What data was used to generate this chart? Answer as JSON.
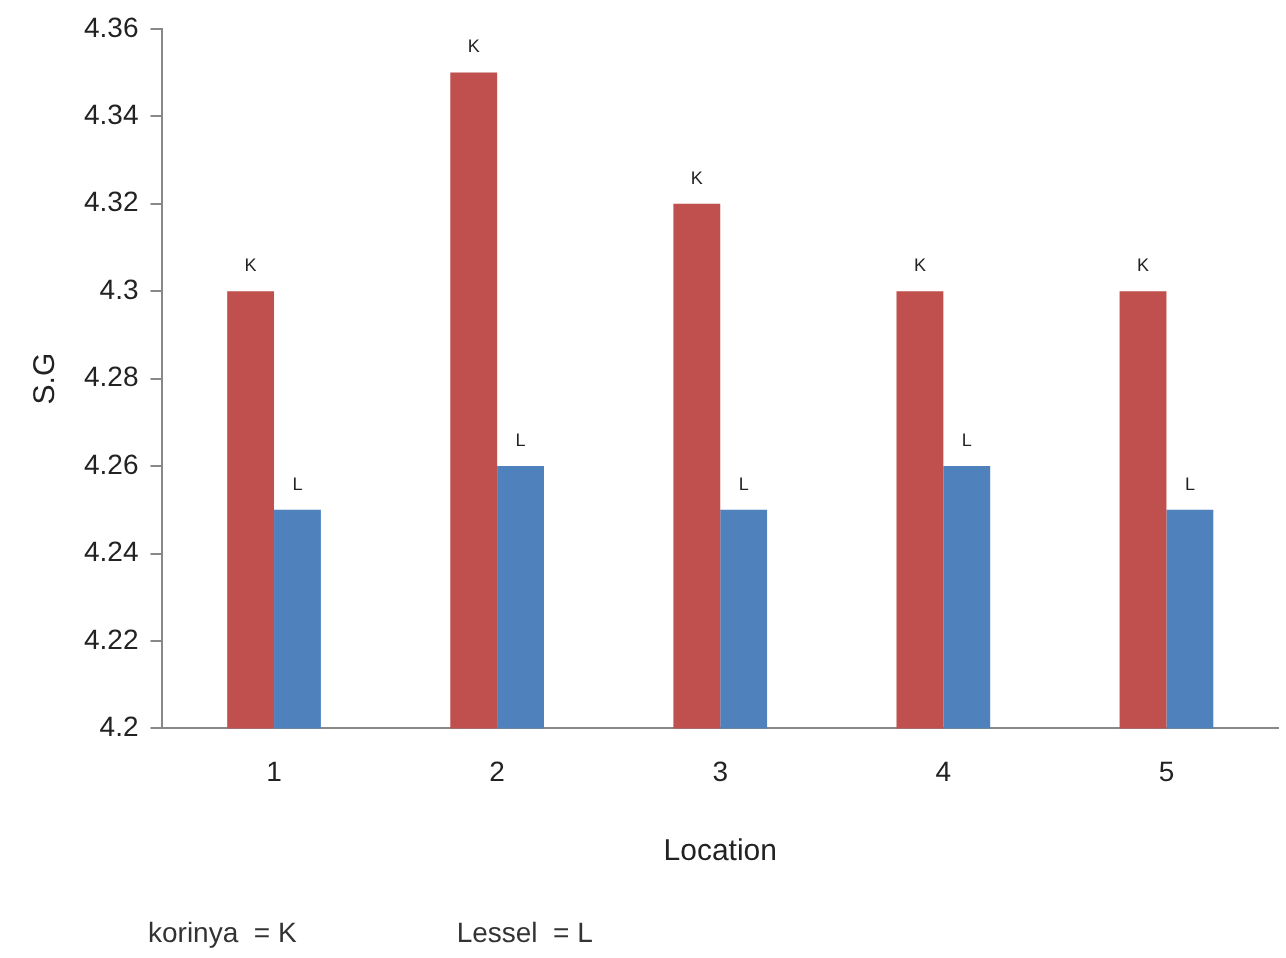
{
  "chart_data": {
    "type": "bar",
    "xlabel": "Location",
    "ylabel": "S.G",
    "categories": [
      "1",
      "2",
      "3",
      "4",
      "5"
    ],
    "series": [
      {
        "color": "#c0504d",
        "values": [
          4.3,
          4.35,
          4.32,
          4.3,
          4.3
        ],
        "value_labels": [
          "K",
          "K",
          "K",
          "K",
          "K"
        ]
      },
      {
        "color": "#4f81bd",
        "values": [
          4.25,
          4.26,
          4.25,
          4.26,
          4.25
        ],
        "value_labels": [
          "L",
          "L",
          "L",
          "L",
          "L"
        ]
      }
    ],
    "ylim": [
      4.2,
      4.36
    ],
    "yticks": [
      4.2,
      4.22,
      4.24,
      4.26,
      4.28,
      4.3,
      4.32,
      4.34,
      4.36
    ],
    "grid": false,
    "legend": false,
    "annotations": [
      "korinya  = K",
      "Lessel  = L"
    ]
  }
}
